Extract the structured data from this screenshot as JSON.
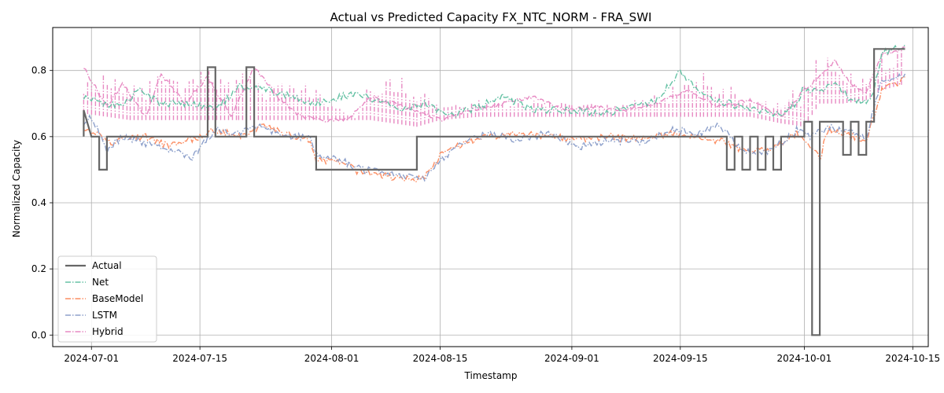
{
  "chart_data": {
    "type": "line",
    "title": "Actual vs Predicted Capacity FX_NTC_NORM - FRA_SWI",
    "xlabel": "Timestamp",
    "ylabel": "Normalized Capacity",
    "x_range": [
      "2024-06-26",
      "2024-10-17"
    ],
    "ylim": [
      -0.035,
      0.93
    ],
    "x_ticks": [
      "2024-07-01",
      "2024-07-15",
      "2024-08-01",
      "2024-08-15",
      "2024-09-01",
      "2024-09-15",
      "2024-10-01",
      "2024-10-15"
    ],
    "y_ticks": [
      0.0,
      0.2,
      0.4,
      0.6,
      0.8
    ],
    "y_tick_labels": [
      "0.0",
      "0.2",
      "0.4",
      "0.6",
      "0.8"
    ],
    "grid": true,
    "legend_position": "lower-left",
    "series": [
      {
        "name": "Actual",
        "color": "#666666",
        "style": "solid-step",
        "points": [
          [
            "2024-06-30",
            0.6
          ],
          [
            "2024-06-30",
            0.68
          ],
          [
            "2024-07-01",
            0.6
          ],
          [
            "2024-07-02",
            0.6
          ],
          [
            "2024-07-02",
            0.5
          ],
          [
            "2024-07-03",
            0.5
          ],
          [
            "2024-07-03",
            0.6
          ],
          [
            "2024-07-16",
            0.6
          ],
          [
            "2024-07-16",
            0.81
          ],
          [
            "2024-07-17",
            0.81
          ],
          [
            "2024-07-17",
            0.6
          ],
          [
            "2024-07-21",
            0.6
          ],
          [
            "2024-07-21",
            0.81
          ],
          [
            "2024-07-22",
            0.81
          ],
          [
            "2024-07-22",
            0.6
          ],
          [
            "2024-07-30",
            0.6
          ],
          [
            "2024-07-30",
            0.5
          ],
          [
            "2024-08-12",
            0.5
          ],
          [
            "2024-08-12",
            0.6
          ],
          [
            "2024-09-21",
            0.6
          ],
          [
            "2024-09-21",
            0.5
          ],
          [
            "2024-09-22",
            0.5
          ],
          [
            "2024-09-22",
            0.6
          ],
          [
            "2024-09-23",
            0.6
          ],
          [
            "2024-09-23",
            0.5
          ],
          [
            "2024-09-24",
            0.5
          ],
          [
            "2024-09-24",
            0.6
          ],
          [
            "2024-09-25",
            0.6
          ],
          [
            "2024-09-25",
            0.5
          ],
          [
            "2024-09-26",
            0.5
          ],
          [
            "2024-09-26",
            0.6
          ],
          [
            "2024-09-27",
            0.6
          ],
          [
            "2024-09-27",
            0.5
          ],
          [
            "2024-09-28",
            0.5
          ],
          [
            "2024-09-28",
            0.6
          ],
          [
            "2024-10-01",
            0.6
          ],
          [
            "2024-10-01",
            0.645
          ],
          [
            "2024-10-02",
            0.645
          ],
          [
            "2024-10-02",
            0.0
          ],
          [
            "2024-10-03",
            0.0
          ],
          [
            "2024-10-03",
            0.645
          ],
          [
            "2024-10-06",
            0.645
          ],
          [
            "2024-10-06",
            0.545
          ],
          [
            "2024-10-07",
            0.545
          ],
          [
            "2024-10-07",
            0.645
          ],
          [
            "2024-10-08",
            0.645
          ],
          [
            "2024-10-08",
            0.545
          ],
          [
            "2024-10-09",
            0.545
          ],
          [
            "2024-10-09",
            0.645
          ],
          [
            "2024-10-10",
            0.645
          ],
          [
            "2024-10-10",
            0.865
          ],
          [
            "2024-10-14",
            0.865
          ]
        ]
      },
      {
        "name": "Net",
        "color": "#66c2a5",
        "style": "dashdot",
        "points": [
          [
            "2024-06-30",
            0.72
          ],
          [
            "2024-07-03",
            0.7
          ],
          [
            "2024-07-05",
            0.69
          ],
          [
            "2024-07-07",
            0.74
          ],
          [
            "2024-07-10",
            0.7
          ],
          [
            "2024-07-14",
            0.7
          ],
          [
            "2024-07-17",
            0.68
          ],
          [
            "2024-07-20",
            0.75
          ],
          [
            "2024-07-24",
            0.74
          ],
          [
            "2024-07-27",
            0.72
          ],
          [
            "2024-07-30",
            0.7
          ],
          [
            "2024-08-02",
            0.72
          ],
          [
            "2024-08-04",
            0.73
          ],
          [
            "2024-08-07",
            0.71
          ],
          [
            "2024-08-10",
            0.68
          ],
          [
            "2024-08-13",
            0.7
          ],
          [
            "2024-08-16",
            0.66
          ],
          [
            "2024-08-20",
            0.69
          ],
          [
            "2024-08-23",
            0.72
          ],
          [
            "2024-08-27",
            0.68
          ],
          [
            "2024-09-01",
            0.68
          ],
          [
            "2024-09-05",
            0.67
          ],
          [
            "2024-09-09",
            0.69
          ],
          [
            "2024-09-12",
            0.71
          ],
          [
            "2024-09-14",
            0.77
          ],
          [
            "2024-09-15",
            0.8
          ],
          [
            "2024-09-17",
            0.74
          ],
          [
            "2024-09-20",
            0.71
          ],
          [
            "2024-09-24",
            0.68
          ],
          [
            "2024-09-28",
            0.67
          ],
          [
            "2024-09-30",
            0.7
          ],
          [
            "2024-10-01",
            0.75
          ],
          [
            "2024-10-03",
            0.73
          ],
          [
            "2024-10-05",
            0.77
          ],
          [
            "2024-10-07",
            0.71
          ],
          [
            "2024-10-09",
            0.7
          ],
          [
            "2024-10-10",
            0.74
          ],
          [
            "2024-10-11",
            0.85
          ],
          [
            "2024-10-13",
            0.87
          ],
          [
            "2024-10-14",
            0.88
          ]
        ]
      },
      {
        "name": "BaseModel",
        "color": "#fc8d62",
        "style": "dashdot",
        "points": [
          [
            "2024-06-30",
            0.63
          ],
          [
            "2024-07-01",
            0.62
          ],
          [
            "2024-07-03",
            0.58
          ],
          [
            "2024-07-05",
            0.59
          ],
          [
            "2024-07-08",
            0.6
          ],
          [
            "2024-07-11",
            0.57
          ],
          [
            "2024-07-14",
            0.59
          ],
          [
            "2024-07-17",
            0.62
          ],
          [
            "2024-07-20",
            0.6
          ],
          [
            "2024-07-23",
            0.63
          ],
          [
            "2024-07-26",
            0.61
          ],
          [
            "2024-07-29",
            0.59
          ],
          [
            "2024-07-30",
            0.53
          ],
          [
            "2024-08-02",
            0.52
          ],
          [
            "2024-08-05",
            0.49
          ],
          [
            "2024-08-08",
            0.48
          ],
          [
            "2024-08-11",
            0.47
          ],
          [
            "2024-08-13",
            0.48
          ],
          [
            "2024-08-15",
            0.54
          ],
          [
            "2024-08-18",
            0.58
          ],
          [
            "2024-08-21",
            0.6
          ],
          [
            "2024-08-25",
            0.61
          ],
          [
            "2024-08-29",
            0.6
          ],
          [
            "2024-09-02",
            0.59
          ],
          [
            "2024-09-06",
            0.6
          ],
          [
            "2024-09-10",
            0.59
          ],
          [
            "2024-09-14",
            0.61
          ],
          [
            "2024-09-18",
            0.6
          ],
          [
            "2024-09-21",
            0.58
          ],
          [
            "2024-09-24",
            0.55
          ],
          [
            "2024-09-27",
            0.57
          ],
          [
            "2024-09-30",
            0.61
          ],
          [
            "2024-10-02",
            0.57
          ],
          [
            "2024-10-03",
            0.53
          ],
          [
            "2024-10-04",
            0.62
          ],
          [
            "2024-10-07",
            0.6
          ],
          [
            "2024-10-09",
            0.59
          ],
          [
            "2024-10-11",
            0.74
          ],
          [
            "2024-10-13",
            0.76
          ],
          [
            "2024-10-14",
            0.78
          ]
        ]
      },
      {
        "name": "LSTM",
        "color": "#8da0cb",
        "style": "dashdot",
        "points": [
          [
            "2024-06-30",
            0.64
          ],
          [
            "2024-07-01",
            0.66
          ],
          [
            "2024-07-03",
            0.56
          ],
          [
            "2024-07-05",
            0.6
          ],
          [
            "2024-07-08",
            0.58
          ],
          [
            "2024-07-11",
            0.56
          ],
          [
            "2024-07-14",
            0.54
          ],
          [
            "2024-07-17",
            0.62
          ],
          [
            "2024-07-20",
            0.61
          ],
          [
            "2024-07-23",
            0.63
          ],
          [
            "2024-07-26",
            0.6
          ],
          [
            "2024-07-29",
            0.6
          ],
          [
            "2024-07-30",
            0.55
          ],
          [
            "2024-08-02",
            0.53
          ],
          [
            "2024-08-05",
            0.5
          ],
          [
            "2024-08-08",
            0.49
          ],
          [
            "2024-08-11",
            0.48
          ],
          [
            "2024-08-13",
            0.47
          ],
          [
            "2024-08-15",
            0.53
          ],
          [
            "2024-08-18",
            0.58
          ],
          [
            "2024-08-21",
            0.61
          ],
          [
            "2024-08-25",
            0.59
          ],
          [
            "2024-08-29",
            0.61
          ],
          [
            "2024-09-02",
            0.57
          ],
          [
            "2024-09-06",
            0.59
          ],
          [
            "2024-09-10",
            0.58
          ],
          [
            "2024-09-14",
            0.62
          ],
          [
            "2024-09-18",
            0.61
          ],
          [
            "2024-09-20",
            0.64
          ],
          [
            "2024-09-22",
            0.58
          ],
          [
            "2024-09-25",
            0.54
          ],
          [
            "2024-09-28",
            0.58
          ],
          [
            "2024-09-30",
            0.62
          ],
          [
            "2024-10-02",
            0.6
          ],
          [
            "2024-10-04",
            0.63
          ],
          [
            "2024-10-07",
            0.61
          ],
          [
            "2024-10-09",
            0.6
          ],
          [
            "2024-10-11",
            0.77
          ],
          [
            "2024-10-13",
            0.78
          ],
          [
            "2024-10-14",
            0.79
          ]
        ]
      },
      {
        "name": "Hybrid",
        "color": "#e78ac3",
        "style": "dashdot-band",
        "points": [
          [
            "2024-06-30",
            0.81
          ],
          [
            "2024-07-03",
            0.69
          ],
          [
            "2024-07-05",
            0.76
          ],
          [
            "2024-07-08",
            0.66
          ],
          [
            "2024-07-10",
            0.79
          ],
          [
            "2024-07-13",
            0.7
          ],
          [
            "2024-07-16",
            0.78
          ],
          [
            "2024-07-19",
            0.66
          ],
          [
            "2024-07-22",
            0.81
          ],
          [
            "2024-07-25",
            0.72
          ],
          [
            "2024-07-28",
            0.66
          ],
          [
            "2024-07-31",
            0.65
          ],
          [
            "2024-08-03",
            0.65
          ],
          [
            "2024-08-06",
            0.72
          ],
          [
            "2024-08-09",
            0.7
          ],
          [
            "2024-08-12",
            0.68
          ],
          [
            "2024-08-15",
            0.65
          ],
          [
            "2024-08-19",
            0.68
          ],
          [
            "2024-08-23",
            0.7
          ],
          [
            "2024-08-27",
            0.72
          ],
          [
            "2024-08-31",
            0.68
          ],
          [
            "2024-09-04",
            0.69
          ],
          [
            "2024-09-08",
            0.68
          ],
          [
            "2024-09-12",
            0.7
          ],
          [
            "2024-09-16",
            0.74
          ],
          [
            "2024-09-20",
            0.69
          ],
          [
            "2024-09-24",
            0.71
          ],
          [
            "2024-09-28",
            0.66
          ],
          [
            "2024-10-01",
            0.74
          ],
          [
            "2024-10-03",
            0.78
          ],
          [
            "2024-10-05",
            0.83
          ],
          [
            "2024-10-07",
            0.76
          ],
          [
            "2024-10-09",
            0.73
          ],
          [
            "2024-10-11",
            0.85
          ],
          [
            "2024-10-13",
            0.86
          ],
          [
            "2024-10-14",
            0.87
          ]
        ],
        "band": [
          [
            "2024-06-30",
            0.67,
            0.81
          ],
          [
            "2024-07-06",
            0.65,
            0.78
          ],
          [
            "2024-07-20",
            0.65,
            0.81
          ],
          [
            "2024-07-30",
            0.65,
            0.76
          ],
          [
            "2024-08-04",
            0.65,
            0.66
          ],
          [
            "2024-08-06",
            0.65,
            0.78
          ],
          [
            "2024-08-12",
            0.63,
            0.79
          ],
          [
            "2024-08-15",
            0.65,
            0.69
          ],
          [
            "2024-08-20",
            0.66,
            0.73
          ],
          [
            "2024-09-01",
            0.66,
            0.7
          ],
          [
            "2024-09-12",
            0.66,
            0.73
          ],
          [
            "2024-09-18",
            0.66,
            0.8
          ],
          [
            "2024-09-24",
            0.66,
            0.73
          ],
          [
            "2024-09-28",
            0.64,
            0.7
          ],
          [
            "2024-10-01",
            0.63,
            0.79
          ],
          [
            "2024-10-03",
            0.7,
            0.86
          ],
          [
            "2024-10-06",
            0.7,
            0.86
          ],
          [
            "2024-10-09",
            0.71,
            0.76
          ],
          [
            "2024-10-11",
            0.74,
            0.87
          ],
          [
            "2024-10-14",
            0.76,
            0.87
          ]
        ]
      }
    ]
  }
}
